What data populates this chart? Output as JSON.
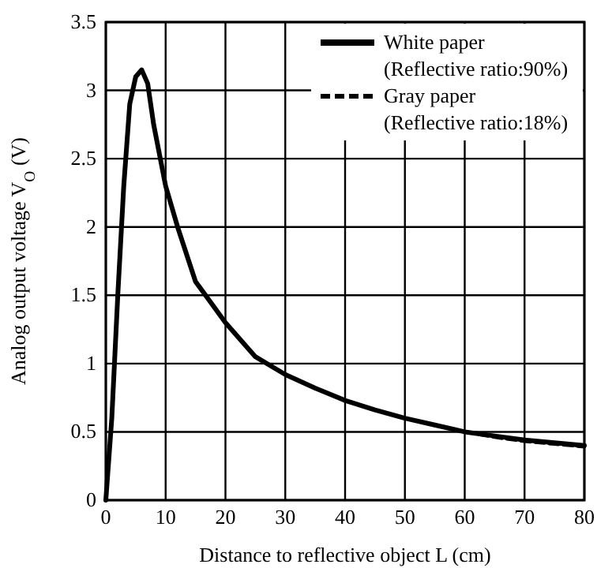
{
  "chart_data": {
    "type": "line",
    "xlabel": "Distance to reflective object L (cm)",
    "ylabel": "Analog output voltage V$_{O}$ (V)",
    "x": [
      0,
      1,
      2,
      3,
      4,
      5,
      6,
      7,
      8,
      10,
      12,
      15,
      20,
      25,
      30,
      35,
      40,
      45,
      50,
      55,
      60,
      65,
      70,
      75,
      80
    ],
    "series": [
      {
        "name": "White paper\n(Reflective ratio:90%)",
        "color": "#000000",
        "line_style": "solid",
        "values": [
          0,
          0.6,
          1.5,
          2.3,
          2.9,
          3.1,
          3.15,
          3.05,
          2.75,
          2.3,
          2.0,
          1.6,
          1.3,
          1.05,
          0.92,
          0.82,
          0.73,
          0.66,
          0.6,
          0.55,
          0.5,
          0.47,
          0.44,
          0.42,
          0.4
        ]
      },
      {
        "name": "Gray paper\n(Reflective ratio:18%)",
        "color": "#000000",
        "line_style": "dashed",
        "values": [
          null,
          null,
          null,
          null,
          null,
          null,
          null,
          null,
          null,
          null,
          null,
          null,
          null,
          null,
          null,
          null,
          null,
          null,
          null,
          null,
          0.5,
          0.46,
          0.43,
          0.41,
          0.39
        ]
      }
    ],
    "xlim": [
      0,
      80
    ],
    "xticks": [
      0,
      10,
      20,
      30,
      40,
      50,
      60,
      70,
      80
    ],
    "ylim": [
      0,
      3.5
    ],
    "yticks": [
      0,
      0.5,
      1,
      1.5,
      2,
      2.5,
      3,
      3.5
    ],
    "grid": true,
    "legend": "top right"
  }
}
